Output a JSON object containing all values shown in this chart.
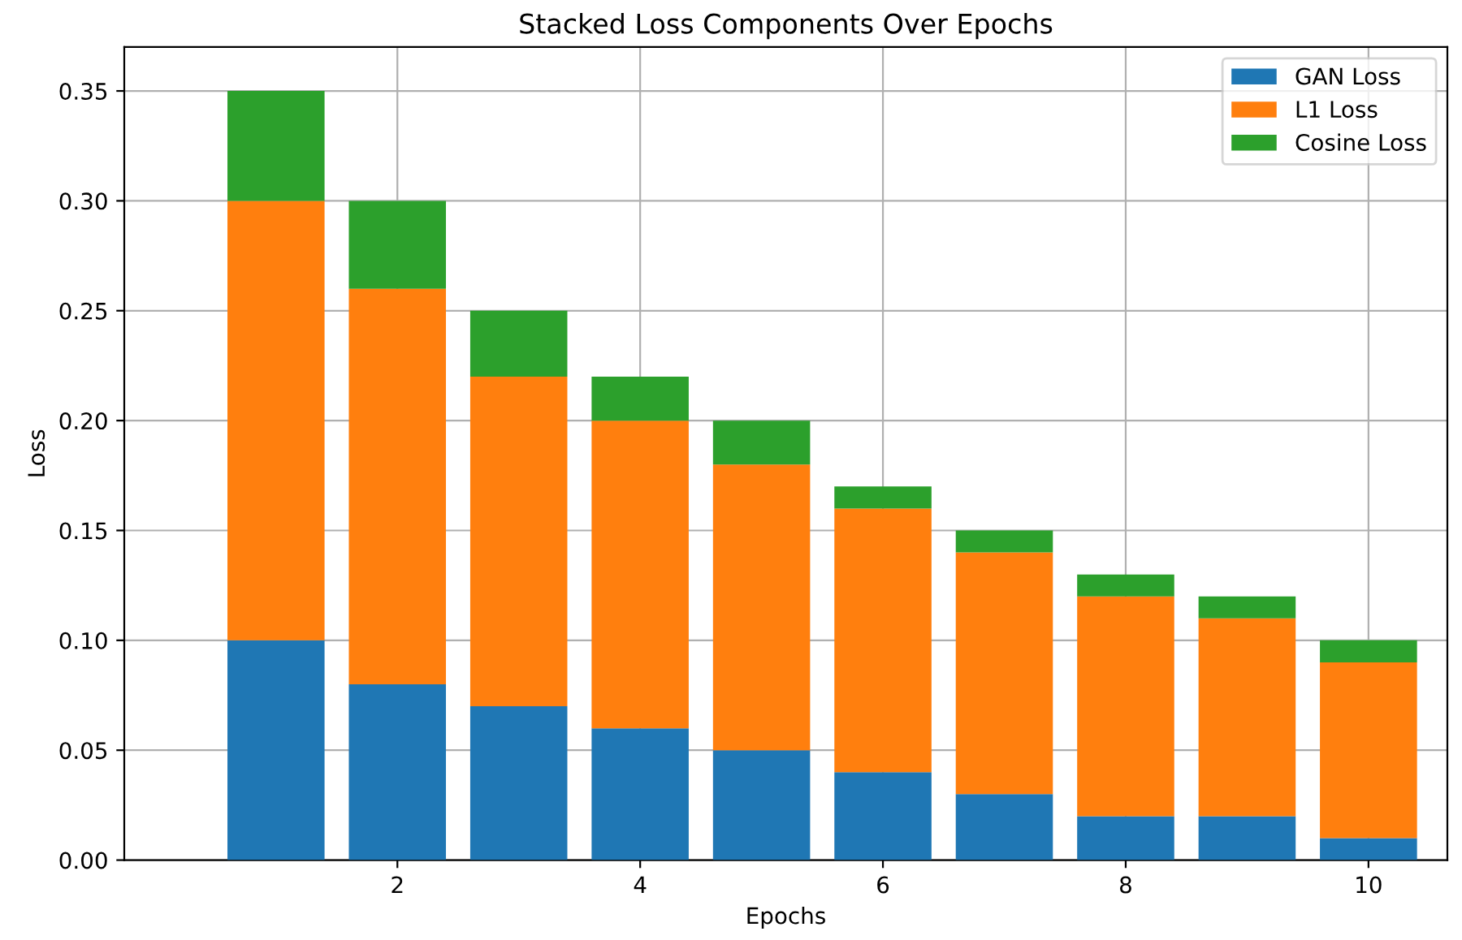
{
  "chart_data": {
    "type": "bar",
    "stacked": true,
    "title": "Stacked Loss Components Over Epochs",
    "xlabel": "Epochs",
    "ylabel": "Loss",
    "x": [
      1,
      2,
      3,
      4,
      5,
      6,
      7,
      8,
      9,
      10
    ],
    "series": [
      {
        "name": "GAN Loss",
        "color": "#1f77b4",
        "values": [
          0.1,
          0.08,
          0.07,
          0.06,
          0.05,
          0.04,
          0.03,
          0.02,
          0.02,
          0.01
        ]
      },
      {
        "name": "L1 Loss",
        "color": "#ff7f0e",
        "values": [
          0.2,
          0.18,
          0.15,
          0.14,
          0.13,
          0.12,
          0.11,
          0.1,
          0.09,
          0.08
        ]
      },
      {
        "name": "Cosine Loss",
        "color": "#2ca02c",
        "values": [
          0.05,
          0.04,
          0.03,
          0.02,
          0.02,
          0.01,
          0.01,
          0.01,
          0.01,
          0.01
        ]
      }
    ],
    "xlim": [
      -0.25,
      10.65
    ],
    "xticks": [
      2,
      4,
      6,
      8,
      10
    ],
    "ylim": [
      0,
      0.37
    ],
    "yticks": [
      {
        "value": 0,
        "label": "0.00"
      },
      {
        "value": 0.05,
        "label": "0.05"
      },
      {
        "value": 0.1,
        "label": "0.10"
      },
      {
        "value": 0.15,
        "label": "0.15"
      },
      {
        "value": 0.2,
        "label": "0.20"
      },
      {
        "value": 0.25,
        "label": "0.25"
      },
      {
        "value": 0.3,
        "label": "0.30"
      },
      {
        "value": 0.35,
        "label": "0.35"
      }
    ],
    "grid": true,
    "legend": "top right"
  }
}
